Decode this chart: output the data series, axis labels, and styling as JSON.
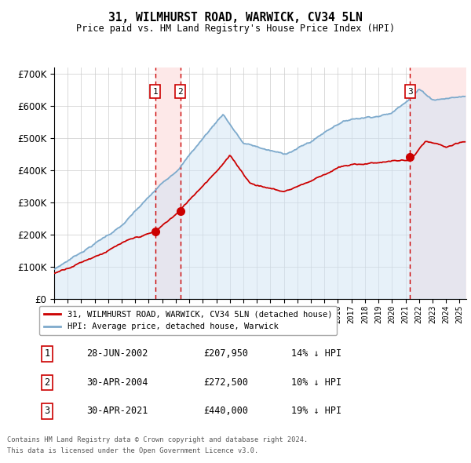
{
  "title": "31, WILMHURST ROAD, WARWICK, CV34 5LN",
  "subtitle": "Price paid vs. HM Land Registry's House Price Index (HPI)",
  "footer1": "Contains HM Land Registry data © Crown copyright and database right 2024.",
  "footer2": "This data is licensed under the Open Government Licence v3.0.",
  "legend_red": "31, WILMHURST ROAD, WARWICK, CV34 5LN (detached house)",
  "legend_blue": "HPI: Average price, detached house, Warwick",
  "transactions": [
    {
      "label": "1",
      "date": "28-JUN-2002",
      "price": 207950,
      "pct": "14%",
      "dir": "↓",
      "x_year": 2002.49
    },
    {
      "label": "2",
      "date": "30-APR-2004",
      "price": 272500,
      "pct": "10%",
      "dir": "↓",
      "x_year": 2004.33
    },
    {
      "label": "3",
      "date": "30-APR-2021",
      "price": 440000,
      "pct": "19%",
      "dir": "↓",
      "x_year": 2021.33
    }
  ],
  "ylim": [
    0,
    720000
  ],
  "yticks": [
    0,
    100000,
    200000,
    300000,
    400000,
    500000,
    600000,
    700000
  ],
  "xlim_start": 1995.0,
  "xlim_end": 2025.5,
  "background_color": "#ffffff",
  "grid_color": "#cccccc",
  "hpi_color": "#7eaacc",
  "price_color": "#cc0000",
  "transaction_shade_color": "#fde8e8",
  "vline_color": "#cc0000",
  "label_box_color": "#ffffff",
  "label_box_edge": "#cc0000",
  "hpi_fill_color": "#d0e4f5"
}
